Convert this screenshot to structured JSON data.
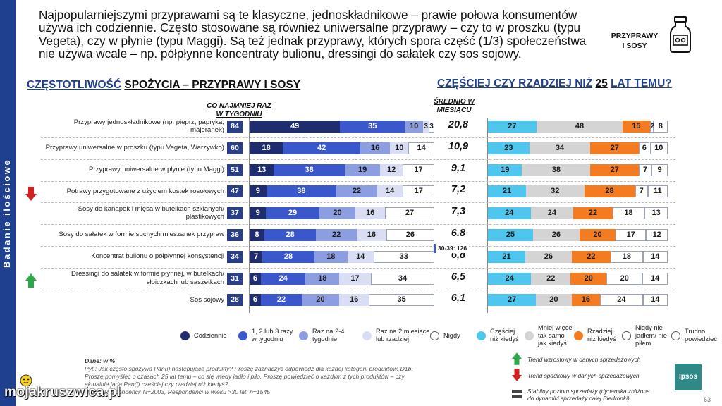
{
  "sidebar": {
    "label": "Badanie ilościowe"
  },
  "headline": "Najpopularniejszymi przyprawami są te klasyczne, jednoskładnikowe – prawie połowa konsumentów używa ich codziennie. Często stosowane są również uniwersalne przyprawy – czy to w proszku (typu Vegeta), czy w płynie (typu Maggi). Są też jednak przyprawy, których spora część (1/3) społeczeństwa nie używa wcale – np. półpłynne koncentraty bulionu, dressingi do sałatek czy sos sojowy.",
  "corner": {
    "line1": "PRZYPRAWY",
    "line2": "I SOSY",
    "icon": "bottle-icon"
  },
  "section_left": {
    "part1": "CZĘSTOTLIWOŚĆ",
    "part2": "SPOŻYCIA – PRZYPRAWY I SOSY"
  },
  "section_right": {
    "part1": "CZĘŚCIEJ CZY RZADZIEJ NIŻ",
    "part2": "25",
    "part3": "LAT TEMU?"
  },
  "col_weekly": {
    "line1": "CO NAJMNIEJ RAZ",
    "line2": "W TYGODNIU"
  },
  "col_monthly": {
    "line1": "ŚREDNIO W",
    "line2": "MIESIĄCU"
  },
  "annotation": "30-39: 126",
  "colors": {
    "daily": "#1f2d6e",
    "weekly_multi": "#3b57cc",
    "weekly_rare": "#8d9ee0",
    "monthly_rare": "#d9def4",
    "never": "#ffffff",
    "more_often": "#4fc6ee",
    "same": "#d4d4d4",
    "less_often": "#f47b20",
    "not_eat": "#ffffff",
    "hard_to_say": "#ffffff"
  },
  "chart_data": [
    {
      "type": "bar",
      "orientation": "horizontal-stacked",
      "title": "CZĘSTOTLIWOŚĆ SPOŻYCIA – PRZYPRAWY I SOSY",
      "categories": [
        "Przyprawy jednoskładnikowe (np. pieprz, papryka, majeranek)",
        "Przyprawy uniwersalne w proszku (typu Vegeta, Warzywko)",
        "Przyprawy uniwersalne w płynie (typu Maggi)",
        "Potrawy przygotowane z użyciem kostek rosołowych",
        "Sosy do kanapek i mięsa w butelkach szklanych/ plastikowych",
        "Sosy do sałatek w formie suchych mieszanek przypraw",
        "Koncentrat bulionu o półpłynnej konsystencji",
        "Dressingi do sałatek w formie płynnej, w butelkach/ słoiczkach lub saszetkach",
        "Sos sojowy"
      ],
      "weekly_at_least": [
        84,
        60,
        51,
        47,
        37,
        36,
        34,
        31,
        28
      ],
      "avg_per_month": [
        "20,8",
        "10,9",
        "9,1",
        "7,2",
        "7,3",
        "6.8",
        "6,8",
        "6,5",
        "6,1"
      ],
      "trend": [
        "",
        "",
        "",
        "down",
        "",
        "",
        "",
        "up",
        ""
      ],
      "series": [
        {
          "name": "Codziennie",
          "values": [
            49,
            18,
            13,
            9,
            9,
            8,
            7,
            6,
            6
          ]
        },
        {
          "name": "1, 2 lub 3 razy w tygodniu",
          "values": [
            35,
            42,
            38,
            38,
            29,
            28,
            28,
            24,
            22
          ]
        },
        {
          "name": "Raz na 2-4 tygodnie",
          "values": [
            10,
            16,
            19,
            22,
            20,
            22,
            18,
            18,
            20
          ]
        },
        {
          "name": "Raz na 2 miesiące lub rzadziej",
          "values": [
            3,
            10,
            12,
            14,
            16,
            16,
            14,
            17,
            16
          ]
        },
        {
          "name": "Nigdy",
          "values": [
            3,
            14,
            17,
            17,
            27,
            26,
            33,
            34,
            35
          ]
        }
      ]
    },
    {
      "type": "bar",
      "orientation": "horizontal-stacked",
      "title": "CZĘŚCIEJ CZY RZADZIEJ NIŻ 25 LAT TEMU?",
      "categories": [
        "Przyprawy jednoskładnikowe (np. pieprz, papryka, majeranek)",
        "Przyprawy uniwersalne w proszku (typu Vegeta, Warzywko)",
        "Przyprawy uniwersalne w płynie (typu Maggi)",
        "Potrawy przygotowane z użyciem kostek rosołowych",
        "Sosy do kanapek i mięsa w butelkach szklanych/ plastikowych",
        "Sosy do sałatek w formie suchych mieszanek przypraw",
        "Koncentrat bulionu o półpłynnej konsystencji",
        "Dressingi do sałatek w formie płynnej, w butelkach/ słoiczkach lub saszetkach",
        "Sos sojowy"
      ],
      "series": [
        {
          "name": "Częściej niż kiedyś",
          "values": [
            27,
            23,
            19,
            21,
            24,
            25,
            21,
            24,
            27
          ]
        },
        {
          "name": "Mniej więcej tak samo jak kiedyś",
          "values": [
            48,
            34,
            38,
            32,
            24,
            26,
            26,
            22,
            20
          ]
        },
        {
          "name": "Rzadziej niż kiedyś",
          "values": [
            15,
            27,
            27,
            28,
            22,
            20,
            22,
            20,
            16
          ]
        },
        {
          "name": "Nigdy nie jadłem/ nie piłem",
          "values": [
            2,
            6,
            7,
            7,
            18,
            17,
            18,
            20,
            24
          ]
        },
        {
          "name": "Trudno powiedzieć",
          "values": [
            8,
            10,
            9,
            11,
            13,
            12,
            14,
            14,
            14
          ]
        }
      ]
    }
  ],
  "legend_left": [
    {
      "label": "Codziennie"
    },
    {
      "label": "1, 2 lub 3 razy w tygodniu"
    },
    {
      "label": "Raz na 2-4 tygodnie"
    },
    {
      "label": "Raz na 2 miesiące lub rzadziej"
    },
    {
      "label": "Nigdy"
    }
  ],
  "legend_right": [
    {
      "label": "Częściej niż kiedyś"
    },
    {
      "label": "Mniej więcej tak samo jak kiedyś"
    },
    {
      "label": "Rzadziej niż kiedyś"
    },
    {
      "label": "Nigdy nie jadłem/ nie piłem"
    },
    {
      "label": "Trudno powiedzieć"
    }
  ],
  "footnote": {
    "l1": "Dane: w %",
    "l2": "Pyt.: Jak często spożywa Pan(i) następujące produkty? Proszę zaznaczyć odpowiedź dla każdej kategorii produktów. D1b.",
    "l3": "Proszę pomyśleć o czasach 25 lat temu – co się wtedy jadło i piło. Proszę powiedzieć o każdym z tych produktów – czy",
    "l4": "aktualnie jada Pan(i) częściej czy rzadziej niż kiedyś?",
    "l5": "Próba: Respondenci: N=2003, Respondenci w wieku >30 lat: n=1545"
  },
  "trend_legend": {
    "up": "Trend wzrostowy w danych sprzedażowych",
    "down": "Trend spadkowy w danych sprzedażowych",
    "stable_l1": "Stabilny poziom sprzedaży (dynamika zbliżona",
    "stable_l2": "do dynamiki sprzedaży całej Biedronki)"
  },
  "logo": "Ipsos",
  "page_number": "63",
  "watermark": "mojakruszwica.pl"
}
